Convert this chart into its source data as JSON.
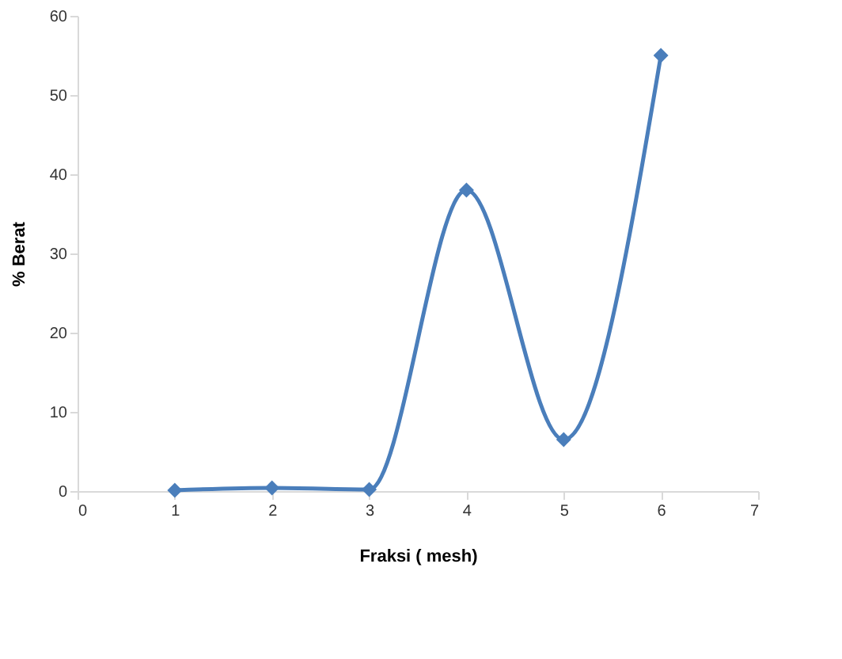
{
  "chart_data": {
    "type": "line",
    "xlabel": "Fraksi ( mesh)",
    "ylabel": "% Berat",
    "x": [
      1,
      2,
      3,
      4,
      5,
      6
    ],
    "series": [
      {
        "color": "#4a7ebb",
        "values": [
          0.1,
          0.4,
          0.2,
          38,
          6.5,
          55
        ]
      }
    ],
    "xlim": [
      0,
      7
    ],
    "xticks": [
      0,
      1,
      2,
      3,
      4,
      5,
      6,
      7
    ],
    "ylim": [
      0,
      60
    ],
    "yticks": [
      0,
      10,
      20,
      30,
      40,
      50,
      60
    ],
    "grid": false,
    "marker": "diamond",
    "line_style": "solid"
  }
}
